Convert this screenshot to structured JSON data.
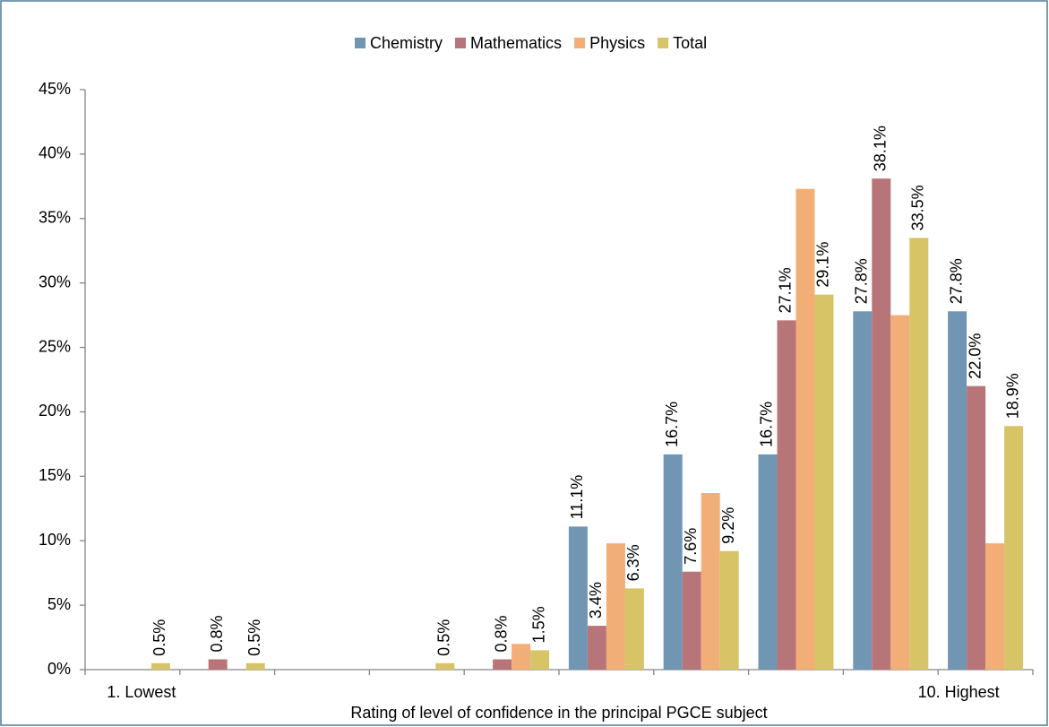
{
  "chart_data": {
    "type": "bar",
    "x_label": "Rating of level of confidence in the principal PGCE subject",
    "categories": [
      "1. Lowest",
      null,
      null,
      null,
      null,
      null,
      null,
      null,
      null,
      "10. Highest"
    ],
    "series": [
      {
        "name": "Chemistry",
        "color": "#7096b4",
        "values": [
          0,
          0,
          0,
          0,
          0,
          11.1,
          16.7,
          16.7,
          27.8,
          27.8
        ],
        "value_labels": [
          null,
          null,
          null,
          null,
          null,
          "11.1%",
          "16.7%",
          "16.7%",
          "27.8%",
          "27.8%"
        ]
      },
      {
        "name": "Mathematics",
        "color": "#b87579",
        "values": [
          0,
          0.8,
          0,
          0,
          0.8,
          3.4,
          7.6,
          27.1,
          38.1,
          22.0
        ],
        "value_labels": [
          null,
          "0.8%",
          null,
          null,
          "0.8%",
          "3.4%",
          "7.6%",
          "27.1%",
          "38.1%",
          "22.0%"
        ]
      },
      {
        "name": "Physics",
        "color": "#f2ae77",
        "values": [
          0,
          0,
          0,
          0,
          2.0,
          9.8,
          13.7,
          37.3,
          27.5,
          9.8
        ]
      },
      {
        "name": "Total",
        "color": "#d7c467",
        "values": [
          0.5,
          0.5,
          0,
          0.5,
          1.5,
          6.3,
          9.2,
          29.1,
          33.5,
          18.9
        ],
        "value_labels": [
          "0.5%",
          "0.5%",
          null,
          "0.5%",
          "1.5%",
          "6.3%",
          "9.2%",
          "29.1%",
          "33.5%",
          "18.9%"
        ]
      }
    ],
    "ylim": [
      0,
      45
    ],
    "yticks": [
      {
        "value": 0,
        "label": "0%"
      },
      {
        "value": 5,
        "label": "5%"
      },
      {
        "value": 10,
        "label": "10%"
      },
      {
        "value": 15,
        "label": "15%"
      },
      {
        "value": 20,
        "label": "20%"
      },
      {
        "value": 25,
        "label": "25%"
      },
      {
        "value": 30,
        "label": "30%"
      },
      {
        "value": 35,
        "label": "35%"
      },
      {
        "value": 40,
        "label": "40%"
      },
      {
        "value": 45,
        "label": "45%"
      }
    ],
    "grid": false,
    "legend": "top"
  }
}
